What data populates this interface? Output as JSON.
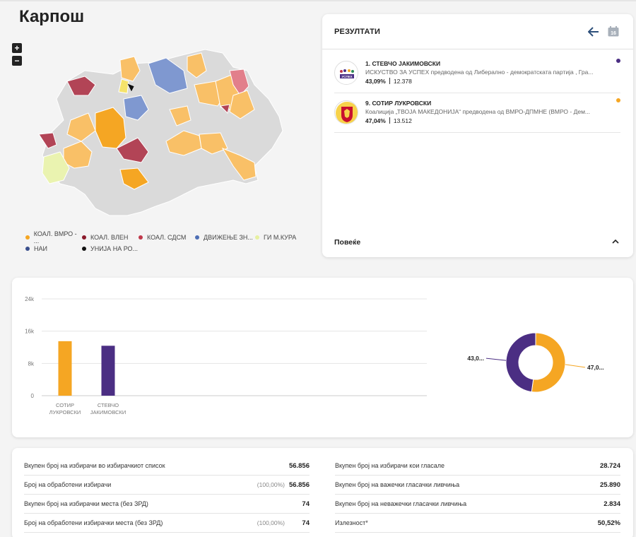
{
  "page": {
    "title": "Карпош"
  },
  "map": {
    "zoom_in_label": "+",
    "zoom_out_label": "−"
  },
  "legend": {
    "items": [
      {
        "label": "КОАЛ. ВМРО - ...",
        "color": "#f5a623"
      },
      {
        "label": "КОАЛ. ВЛЕН",
        "color": "#8b1a2b"
      },
      {
        "label": "КОАЛ. СДСМ",
        "color": "#c0394b"
      },
      {
        "label": "ДВИЖЕЊЕ ЗН...",
        "color": "#4e6fb5"
      },
      {
        "label": "ГИ М.КУРА",
        "color": "#e6f0a0"
      },
      {
        "label": "НАИ",
        "color": "#3a4f8c"
      },
      {
        "label": "УНИЈА НА РО...",
        "color": "#111111"
      }
    ]
  },
  "results": {
    "title": "РЕЗУЛТАТИ",
    "back_icon": "arrow-left-icon",
    "calendar_icon": "calendar-icon",
    "calendar_day": "16",
    "candidates": [
      {
        "name": "1. СТЕВЧО ЈАКИМОВСКИ",
        "party": "ИСКУСТВО ЗА УСПЕХ предводена од Либерално - демократската партија , Гра...",
        "percent": "43,09%",
        "votes": "12.378",
        "color": "#4b2e83",
        "logo_text": "УСПЕХ"
      },
      {
        "name": "9. СОТИР ЛУКРОВСКИ",
        "party": "Коалиција „ТВОЈА МАКЕДОНИЈА“ предводена од ВМРО-ДПМНЕ (ВМРО - Дем...",
        "percent": "47,04%",
        "votes": "13.512",
        "color": "#f5a623"
      }
    ],
    "more_label": "Повеќе"
  },
  "chart_data": [
    {
      "type": "bar",
      "categories": [
        "СОТИР ЛУКРОВСКИ",
        "СТЕВЧО ЈАКИМОВСКИ"
      ],
      "category_lines": [
        [
          "СОТИР",
          "ЛУКРОВСКИ"
        ],
        [
          "СТЕВЧО",
          "ЈАКИМОВСКИ"
        ]
      ],
      "values": [
        13512,
        12378
      ],
      "colors": [
        "#f5a623",
        "#4b2e83"
      ],
      "yticks": [
        0,
        8000,
        16000,
        24000
      ],
      "ytick_labels": [
        "0",
        "8k",
        "16k",
        "24k"
      ],
      "ylim": [
        0,
        24000
      ],
      "grid": true
    },
    {
      "type": "pie",
      "donut": true,
      "labels": [
        "СОТИР ЛУКРОВСКИ",
        "СТЕВЧО ЈАКИМОВСКИ"
      ],
      "values": [
        47.04,
        43.09
      ],
      "value_labels": [
        "47,0...",
        "43,0..."
      ],
      "colors": [
        "#f5a623",
        "#4b2e83"
      ]
    }
  ],
  "stats": {
    "left": [
      {
        "label": "Вкупен број на избирачи во избирачкиот список",
        "pct": "",
        "value": "56.856"
      },
      {
        "label": "Број на обработени избирачи",
        "pct": "(100,00%)",
        "value": "56.856"
      },
      {
        "label": "Вкупен број на избирачки места (без ЗРД)",
        "pct": "",
        "value": "74"
      },
      {
        "label": "Број на обработени избирачки места (без ЗРД)",
        "pct": "(100,00%)",
        "value": "74"
      }
    ],
    "right": [
      {
        "label": "Вкупен број на избирачи кои гласале",
        "pct": "",
        "value": "28.724"
      },
      {
        "label": "Вкупен број на важечки гласачки ливчиња",
        "pct": "",
        "value": "25.890"
      },
      {
        "label": "Вкупен број на неважечки гласачки ливчиња",
        "pct": "",
        "value": "2.834"
      },
      {
        "label": "Излезност*",
        "pct": "",
        "value": "50,52%"
      }
    ]
  }
}
